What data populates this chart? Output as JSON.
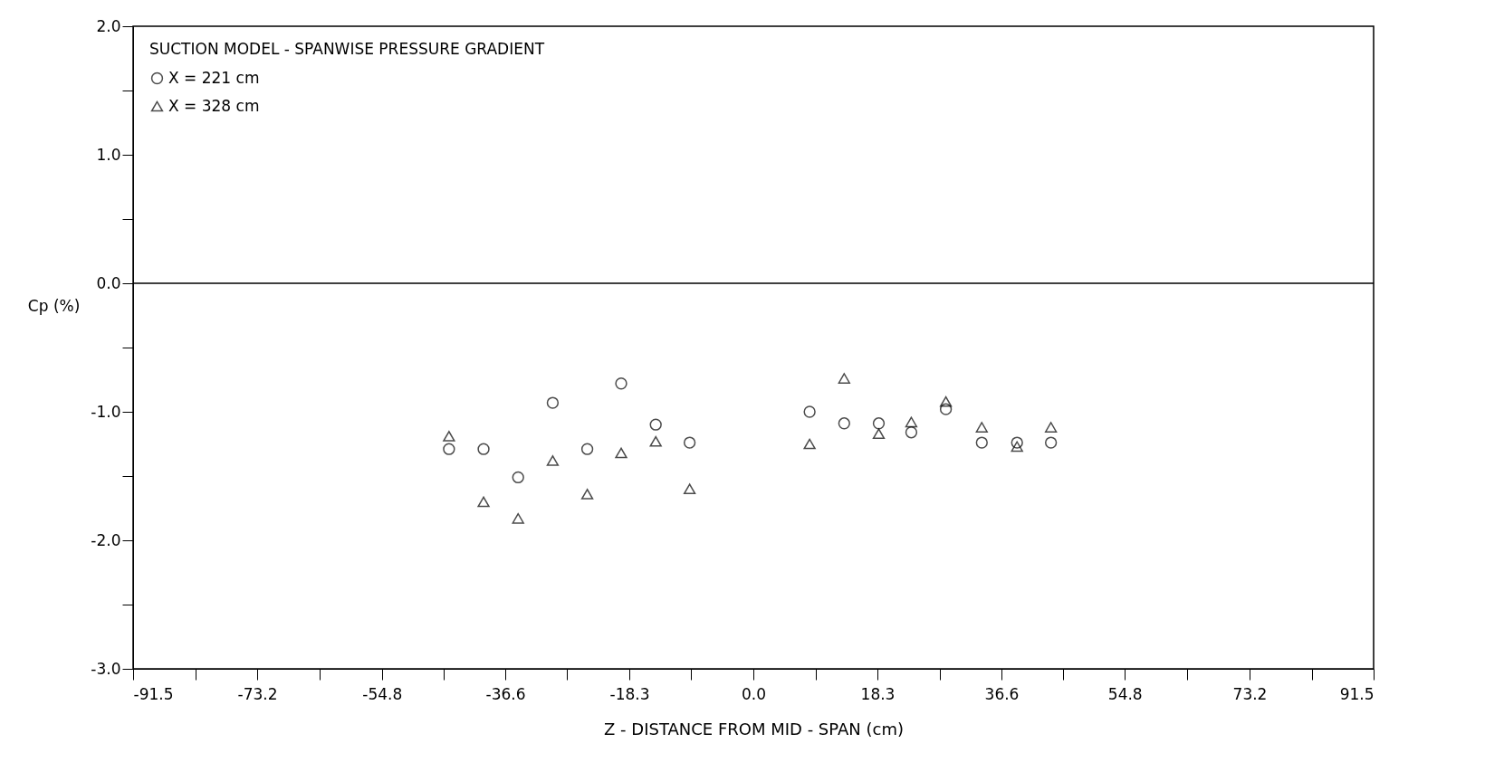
{
  "chart_data": {
    "type": "scatter",
    "xlabel": "Z - DISTANCE  FROM  MID - SPAN  (cm)",
    "ylabel": "Cp (%)",
    "legend_title": "SUCTION  MODEL -  SPANWISE  PRESSURE  GRADIENT",
    "legend": "top left",
    "grid": false,
    "x": [
      -44.9,
      -39.8,
      -34.7,
      -29.6,
      -24.5,
      -19.5,
      -14.4,
      -9.4,
      8.3,
      13.4,
      18.5,
      23.3,
      28.4,
      33.7,
      38.9,
      43.9
    ],
    "series": [
      {
        "name": "X = 221 cm",
        "color": "#000000",
        "marker": "circle",
        "values": [
          -1.29,
          -1.29,
          -1.51,
          -0.93,
          -1.29,
          -0.78,
          -1.1,
          -1.24,
          -1.0,
          -1.09,
          -1.09,
          -1.16,
          -0.98,
          -1.24,
          -1.24,
          -1.24
        ]
      },
      {
        "name": "X = 328 cm",
        "color": "#000000",
        "marker": "triangle",
        "values": [
          -1.19,
          -1.7,
          -1.83,
          -1.38,
          -1.64,
          -1.32,
          -1.23,
          -1.6,
          -1.25,
          -0.74,
          -1.17,
          -1.08,
          -0.92,
          -1.12,
          -1.27,
          -1.12
        ]
      }
    ],
    "xlim": [
      -91.5,
      91.5
    ],
    "xticks": [
      {
        "value": -91.5,
        "label": "-91.5"
      },
      {
        "value": -82.35,
        "label": null
      },
      {
        "value": -73.2,
        "label": "-73.2"
      },
      {
        "value": -64.0,
        "label": null
      },
      {
        "value": -54.8,
        "label": "-54.8"
      },
      {
        "value": -45.7,
        "label": null
      },
      {
        "value": -36.6,
        "label": "-36.6"
      },
      {
        "value": -27.45,
        "label": null
      },
      {
        "value": -18.3,
        "label": "-18.3"
      },
      {
        "value": -9.15,
        "label": null
      },
      {
        "value": 0,
        "label": "0.0"
      },
      {
        "value": 9.15,
        "label": null
      },
      {
        "value": 18.3,
        "label": "18.3"
      },
      {
        "value": 27.45,
        "label": null
      },
      {
        "value": 36.6,
        "label": "36.6"
      },
      {
        "value": 45.7,
        "label": null
      },
      {
        "value": 54.8,
        "label": "54.8"
      },
      {
        "value": 64.0,
        "label": null
      },
      {
        "value": 73.2,
        "label": "73.2"
      },
      {
        "value": 82.35,
        "label": null
      },
      {
        "value": 91.5,
        "label": "91.5"
      }
    ],
    "ylim": [
      -3,
      2
    ],
    "yticks": [
      {
        "value": -3,
        "label": "-3.0"
      },
      {
        "value": -2.5,
        "label": null
      },
      {
        "value": -2,
        "label": "-2.0"
      },
      {
        "value": -1.5,
        "label": null
      },
      {
        "value": -1,
        "label": "-1.0"
      },
      {
        "value": -0.5,
        "label": null
      },
      {
        "value": 0,
        "label": "0.0"
      },
      {
        "value": 0.5,
        "label": null
      },
      {
        "value": 1,
        "label": "1.0"
      },
      {
        "value": 1.5,
        "label": null
      },
      {
        "value": 2,
        "label": "2.0"
      }
    ],
    "ref_lines": [
      {
        "axis": "y",
        "value": 0,
        "color": "#000000"
      }
    ]
  }
}
